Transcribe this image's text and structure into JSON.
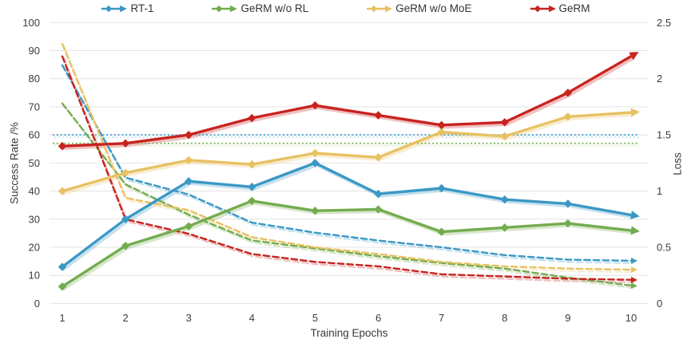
{
  "chart_data": {
    "type": "line",
    "title": "",
    "xlabel": "Training Epochs",
    "x": [
      "1",
      "2",
      "3",
      "4",
      "5",
      "6",
      "7",
      "8",
      "9",
      "10"
    ],
    "y_left": {
      "label": "Success Rate /%",
      "min": 0,
      "max": 100,
      "ticks": [
        0,
        10,
        20,
        30,
        40,
        50,
        60,
        70,
        80,
        90,
        100
      ]
    },
    "y_right": {
      "label": "Loss",
      "min": 0,
      "max": 2.5,
      "ticks": [
        "0",
        "0.5",
        "1",
        "1.5",
        "2",
        "2.5"
      ]
    },
    "grid": true,
    "legend_position": "top",
    "legend": [
      {
        "label": "RT-1",
        "color": "#3B98C4"
      },
      {
        "label": "GeRM w/o RL",
        "color": "#73AC4E"
      },
      {
        "label": "GeRM w/o MoE",
        "color": "#E7C263"
      },
      {
        "label": "GeRM",
        "color": "#C8231F"
      }
    ],
    "series": [
      {
        "name": "RT-1",
        "metric": "success_rate",
        "axis": "left",
        "line_style": "solid",
        "color": "#3B98C4",
        "values": [
          13,
          30,
          43.5,
          41.5,
          50,
          39,
          41,
          37,
          35.5,
          31.5
        ]
      },
      {
        "name": "GeRM w/o RL",
        "metric": "success_rate",
        "axis": "left",
        "line_style": "solid",
        "color": "#73AC4E",
        "values": [
          6,
          20.5,
          27.5,
          36.5,
          33,
          33.5,
          25.5,
          27,
          28.5,
          26
        ]
      },
      {
        "name": "GeRM w/o MoE",
        "metric": "success_rate",
        "axis": "left",
        "line_style": "solid",
        "color": "#E7C263",
        "values": [
          40,
          46.5,
          51,
          49.5,
          53.5,
          52,
          61,
          59.5,
          66.5,
          68
        ]
      },
      {
        "name": "GeRM",
        "metric": "success_rate",
        "axis": "left",
        "line_style": "solid",
        "color": "#C8231F",
        "values": [
          56,
          57,
          60,
          66,
          70.5,
          67,
          63.5,
          64.5,
          75,
          88
        ]
      },
      {
        "name": "RT-1",
        "metric": "loss",
        "axis": "right",
        "line_style": "dashed",
        "color": "#3B98C4",
        "values": [
          2.12,
          1.12,
          0.97,
          0.72,
          0.63,
          0.56,
          0.5,
          0.43,
          0.39,
          0.38
        ]
      },
      {
        "name": "GeRM w/o RL",
        "metric": "loss",
        "axis": "right",
        "line_style": "dashed",
        "color": "#73AC4E",
        "values": [
          1.78,
          1.06,
          0.79,
          0.56,
          0.49,
          0.42,
          0.36,
          0.31,
          0.23,
          0.16
        ]
      },
      {
        "name": "GeRM w/o MoE",
        "metric": "loss",
        "axis": "right",
        "line_style": "dashed",
        "color": "#E7C263",
        "values": [
          2.31,
          0.94,
          0.83,
          0.59,
          0.5,
          0.44,
          0.37,
          0.33,
          0.31,
          0.3
        ]
      },
      {
        "name": "GeRM",
        "metric": "loss",
        "axis": "right",
        "line_style": "dashed",
        "color": "#C8231F",
        "values": [
          2.2,
          0.75,
          0.62,
          0.44,
          0.37,
          0.33,
          0.26,
          0.24,
          0.22,
          0.21
        ]
      }
    ],
    "reference_lines": [
      {
        "name": "baseline-blue-dotted",
        "axis": "left",
        "value": 60,
        "line_style": "dotted",
        "color": "#4FA8D6"
      },
      {
        "name": "baseline-green-dotted",
        "axis": "left",
        "value": 57,
        "line_style": "dotted",
        "color": "#7FB863"
      }
    ]
  },
  "colors": {
    "grid": "#E4E4E4",
    "tick_text": "#3C3C3C",
    "background": "#FFFFFF"
  }
}
